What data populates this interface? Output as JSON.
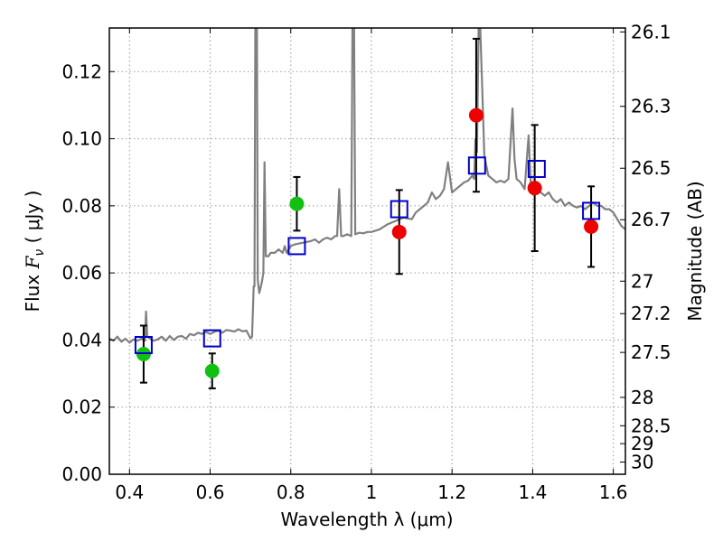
{
  "chart_data": {
    "type": "scatter",
    "xlabel": "Wavelength  λ (μm)",
    "ylabel_prefix": "Flux  ",
    "ylabel_symbol": "F",
    "ylabel_sub": "ν",
    "ylabel_suffix": "  ( μJy )",
    "y2label": "Magnitude (AB)",
    "xlim": [
      0.35,
      1.63
    ],
    "ylim": [
      0.0,
      0.133
    ],
    "grid": true,
    "x_ticks": [
      {
        "value": 0.4,
        "label": "0.4"
      },
      {
        "value": 0.6,
        "label": "0.6"
      },
      {
        "value": 0.8,
        "label": "0.8"
      },
      {
        "value": 1.0,
        "label": "1"
      },
      {
        "value": 1.2,
        "label": "1.2"
      },
      {
        "value": 1.4,
        "label": "1.4"
      },
      {
        "value": 1.6,
        "label": "1.6"
      }
    ],
    "y_ticks": [
      {
        "value": 0.0,
        "label": "0.00"
      },
      {
        "value": 0.02,
        "label": "0.02"
      },
      {
        "value": 0.04,
        "label": "0.04"
      },
      {
        "value": 0.06,
        "label": "0.06"
      },
      {
        "value": 0.08,
        "label": "0.08"
      },
      {
        "value": 0.1,
        "label": "0.10"
      },
      {
        "value": 0.12,
        "label": "0.12"
      }
    ],
    "mag_ticks": [
      {
        "value": 26.1,
        "label": "26.1"
      },
      {
        "value": 26.3,
        "label": "26.3"
      },
      {
        "value": 26.5,
        "label": "26.5"
      },
      {
        "value": 26.7,
        "label": "26.7"
      },
      {
        "value": 27.0,
        "label": "27"
      },
      {
        "value": 27.2,
        "label": "27.2"
      },
      {
        "value": 27.5,
        "label": "27.5"
      },
      {
        "value": 28.0,
        "label": "28"
      },
      {
        "value": 28.5,
        "label": "28.5"
      },
      {
        "value": 29.0,
        "label": "29"
      },
      {
        "value": 30.0,
        "label": "30"
      }
    ],
    "colors": {
      "spectrum": "#808080",
      "model_boxes": "#0000cc",
      "green_points": "#11c011",
      "red_points": "#ee0000",
      "errorbars": "#000000",
      "grid": "#9a9a9a"
    },
    "series": [
      {
        "kind": "line",
        "points": [
          [
            0.35,
            0.0405
          ],
          [
            0.36,
            0.0398
          ],
          [
            0.37,
            0.041
          ],
          [
            0.38,
            0.0395
          ],
          [
            0.39,
            0.0404
          ],
          [
            0.4,
            0.0392
          ],
          [
            0.41,
            0.0402
          ],
          [
            0.42,
            0.0398
          ],
          [
            0.43,
            0.0404
          ],
          [
            0.438,
            0.0398
          ],
          [
            0.441,
            0.0485
          ],
          [
            0.444,
            0.041
          ],
          [
            0.45,
            0.0405
          ],
          [
            0.46,
            0.0398
          ],
          [
            0.47,
            0.0402
          ],
          [
            0.48,
            0.041
          ],
          [
            0.49,
            0.0398
          ],
          [
            0.5,
            0.0412
          ],
          [
            0.51,
            0.04
          ],
          [
            0.52,
            0.041
          ],
          [
            0.53,
            0.0412
          ],
          [
            0.54,
            0.0404
          ],
          [
            0.55,
            0.0418
          ],
          [
            0.56,
            0.0414
          ],
          [
            0.57,
            0.0422
          ],
          [
            0.58,
            0.0418
          ],
          [
            0.59,
            0.0424
          ],
          [
            0.6,
            0.0418
          ],
          [
            0.61,
            0.0424
          ],
          [
            0.62,
            0.0428
          ],
          [
            0.63,
            0.0422
          ],
          [
            0.64,
            0.043
          ],
          [
            0.65,
            0.0428
          ],
          [
            0.66,
            0.0425
          ],
          [
            0.67,
            0.0432
          ],
          [
            0.68,
            0.0426
          ],
          [
            0.69,
            0.0428
          ],
          [
            0.7,
            0.0405
          ],
          [
            0.704,
            0.041
          ],
          [
            0.708,
            0.056
          ],
          [
            0.71,
            0.056
          ],
          [
            0.712,
            0.133
          ],
          [
            0.716,
            0.133
          ],
          [
            0.718,
            0.058
          ],
          [
            0.722,
            0.054
          ],
          [
            0.728,
            0.057
          ],
          [
            0.732,
            0.06
          ],
          [
            0.735,
            0.093
          ],
          [
            0.738,
            0.065
          ],
          [
            0.745,
            0.065
          ],
          [
            0.75,
            0.066
          ],
          [
            0.76,
            0.066
          ],
          [
            0.77,
            0.067
          ],
          [
            0.78,
            0.066
          ],
          [
            0.785,
            0.068
          ],
          [
            0.79,
            0.066
          ],
          [
            0.8,
            0.068
          ],
          [
            0.81,
            0.0685
          ],
          [
            0.83,
            0.069
          ],
          [
            0.85,
            0.0695
          ],
          [
            0.86,
            0.07
          ],
          [
            0.87,
            0.069
          ],
          [
            0.88,
            0.07
          ],
          [
            0.89,
            0.0705
          ],
          [
            0.9,
            0.07
          ],
          [
            0.91,
            0.071
          ],
          [
            0.915,
            0.071
          ],
          [
            0.92,
            0.085
          ],
          [
            0.925,
            0.071
          ],
          [
            0.93,
            0.071
          ],
          [
            0.94,
            0.0715
          ],
          [
            0.95,
            0.071
          ],
          [
            0.953,
            0.133
          ],
          [
            0.957,
            0.133
          ],
          [
            0.96,
            0.0715
          ],
          [
            0.97,
            0.072
          ],
          [
            0.98,
            0.0718
          ],
          [
            0.99,
            0.0722
          ],
          [
            1.0,
            0.0722
          ],
          [
            1.02,
            0.073
          ],
          [
            1.04,
            0.0745
          ],
          [
            1.06,
            0.0755
          ],
          [
            1.08,
            0.0765
          ],
          [
            1.1,
            0.076
          ],
          [
            1.11,
            0.078
          ],
          [
            1.12,
            0.079
          ],
          [
            1.13,
            0.08
          ],
          [
            1.14,
            0.081
          ],
          [
            1.15,
            0.084
          ],
          [
            1.16,
            0.082
          ],
          [
            1.17,
            0.083
          ],
          [
            1.18,
            0.085
          ],
          [
            1.19,
            0.093
          ],
          [
            1.2,
            0.084
          ],
          [
            1.21,
            0.085
          ],
          [
            1.22,
            0.086
          ],
          [
            1.23,
            0.087
          ],
          [
            1.24,
            0.0875
          ],
          [
            1.25,
            0.089
          ],
          [
            1.255,
            0.088
          ],
          [
            1.258,
            0.1
          ],
          [
            1.262,
            0.096
          ],
          [
            1.266,
            0.133
          ],
          [
            1.27,
            0.133
          ],
          [
            1.275,
            0.115
          ],
          [
            1.28,
            0.095
          ],
          [
            1.29,
            0.089
          ],
          [
            1.3,
            0.088
          ],
          [
            1.31,
            0.087
          ],
          [
            1.32,
            0.0875
          ],
          [
            1.33,
            0.087
          ],
          [
            1.34,
            0.088
          ],
          [
            1.35,
            0.109
          ],
          [
            1.355,
            0.094
          ],
          [
            1.36,
            0.088
          ],
          [
            1.37,
            0.087
          ],
          [
            1.38,
            0.085
          ],
          [
            1.39,
            0.101
          ],
          [
            1.395,
            0.087
          ],
          [
            1.4,
            0.086
          ],
          [
            1.41,
            0.085
          ],
          [
            1.42,
            0.084
          ],
          [
            1.43,
            0.083
          ],
          [
            1.44,
            0.084
          ],
          [
            1.45,
            0.082
          ],
          [
            1.46,
            0.081
          ],
          [
            1.47,
            0.082
          ],
          [
            1.48,
            0.08
          ],
          [
            1.49,
            0.081
          ],
          [
            1.5,
            0.08
          ],
          [
            1.51,
            0.0795
          ],
          [
            1.52,
            0.08
          ],
          [
            1.53,
            0.079
          ],
          [
            1.54,
            0.08
          ],
          [
            1.55,
            0.081
          ],
          [
            1.56,
            0.08
          ],
          [
            1.57,
            0.08
          ],
          [
            1.58,
            0.079
          ],
          [
            1.59,
            0.079
          ],
          [
            1.6,
            0.078
          ],
          [
            1.61,
            0.076
          ],
          [
            1.62,
            0.074
          ],
          [
            1.63,
            0.073
          ]
        ]
      },
      {
        "kind": "errorbar-points",
        "marker": "circle",
        "color": "green",
        "points": [
          {
            "x": 0.435,
            "y": 0.0358,
            "yerr": 0.0085
          },
          {
            "x": 0.605,
            "y": 0.0308,
            "yerr": 0.0052
          },
          {
            "x": 0.815,
            "y": 0.0806,
            "yerr": 0.008
          }
        ]
      },
      {
        "kind": "errorbar-points",
        "marker": "circle",
        "color": "red",
        "points": [
          {
            "x": 1.069,
            "y": 0.0722,
            "yerr": 0.0125
          },
          {
            "x": 1.26,
            "y": 0.107,
            "yerr": 0.0228
          },
          {
            "x": 1.405,
            "y": 0.0853,
            "yerr": 0.0188
          },
          {
            "x": 1.545,
            "y": 0.0738,
            "yerr": 0.012
          }
        ]
      },
      {
        "kind": "points",
        "marker": "open-square",
        "color": "blue",
        "points": [
          {
            "x": 0.435,
            "y": 0.0385
          },
          {
            "x": 0.605,
            "y": 0.0405
          },
          {
            "x": 0.815,
            "y": 0.068
          },
          {
            "x": 1.069,
            "y": 0.079
          },
          {
            "x": 1.262,
            "y": 0.092
          },
          {
            "x": 1.41,
            "y": 0.091
          },
          {
            "x": 1.545,
            "y": 0.0785
          }
        ]
      }
    ]
  }
}
